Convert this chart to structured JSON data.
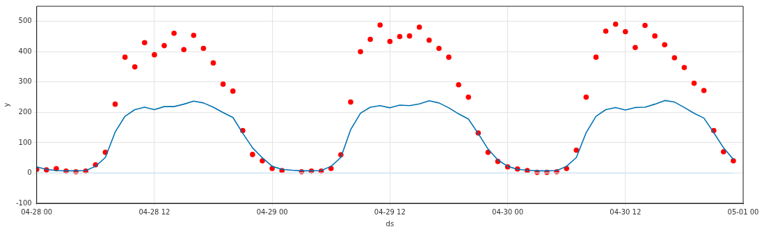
{
  "chart_data": {
    "type": "scatter",
    "xlabel": "ds",
    "ylabel": "y",
    "categories": [
      "04-28 00",
      null,
      null,
      null,
      null,
      null,
      null,
      null,
      null,
      null,
      null,
      null,
      "04-28 12",
      null,
      null,
      null,
      null,
      null,
      null,
      null,
      null,
      null,
      null,
      null,
      "04-29 00",
      null,
      null,
      null,
      null,
      null,
      null,
      null,
      null,
      null,
      null,
      null,
      "04-29 12",
      null,
      null,
      null,
      null,
      null,
      null,
      null,
      null,
      null,
      null,
      null,
      "04-30 00",
      null,
      null,
      null,
      null,
      null,
      null,
      null,
      null,
      null,
      null,
      null,
      "04-30 12",
      null,
      null,
      null,
      null,
      null,
      null,
      null,
      null,
      null,
      null,
      null,
      "05-01 00"
    ],
    "ylim": [
      -100,
      550
    ],
    "yticks": [
      -100,
      0,
      100,
      200,
      300,
      400,
      500
    ],
    "grid": true,
    "series": [
      {
        "type": "line",
        "color": "#cce3f0",
        "values": [
          0,
          0,
          0,
          0,
          0,
          0,
          0,
          0,
          0,
          0,
          0,
          0,
          0,
          0,
          0,
          0,
          0,
          0,
          0,
          0,
          0,
          0,
          0,
          0,
          0,
          0,
          0,
          0,
          0,
          0,
          0,
          0,
          0,
          0,
          0,
          0,
          0,
          0,
          0,
          0,
          0,
          0,
          0,
          0,
          0,
          0,
          0,
          0,
          0,
          0,
          0,
          0,
          0,
          0,
          0,
          0,
          0,
          0,
          0,
          0,
          0,
          0,
          0,
          0,
          0,
          0,
          0,
          0,
          0,
          0,
          0,
          0,
          null
        ]
      },
      {
        "type": "line",
        "color": "#0072b2",
        "marker": "none",
        "values": [
          20,
          12,
          8,
          7,
          7,
          8,
          22,
          51,
          135,
          187,
          209,
          217,
          209,
          219,
          219,
          227,
          237,
          231,
          217,
          199,
          183,
          131,
          83,
          50,
          22,
          12,
          9,
          7,
          7,
          8,
          22,
          51,
          143,
          197,
          217,
          222,
          215,
          224,
          222,
          228,
          238,
          231,
          215,
          195,
          178,
          130,
          79,
          43,
          22,
          12,
          9,
          7,
          7,
          8,
          22,
          51,
          133,
          187,
          209,
          216,
          208,
          216,
          217,
          227,
          239,
          234,
          216,
          197,
          181,
          133,
          83,
          45,
          null
        ]
      },
      {
        "color": "#ff0000",
        "marker": "circle",
        "values": [
          12,
          10,
          14,
          6,
          4,
          6,
          27,
          68,
          227,
          382,
          350,
          430,
          390,
          420,
          461,
          407,
          454,
          411,
          363,
          293,
          270,
          140,
          61,
          40,
          15,
          8,
          null,
          4,
          6,
          6,
          15,
          60,
          234,
          400,
          441,
          488,
          434,
          450,
          452,
          481,
          438,
          411,
          382,
          291,
          250,
          132,
          68,
          38,
          20,
          13,
          8,
          2,
          2,
          4,
          15,
          75,
          250,
          382,
          468,
          491,
          466,
          414,
          487,
          452,
          423,
          380,
          348,
          296,
          272,
          140,
          70,
          40,
          null
        ]
      }
    ]
  }
}
